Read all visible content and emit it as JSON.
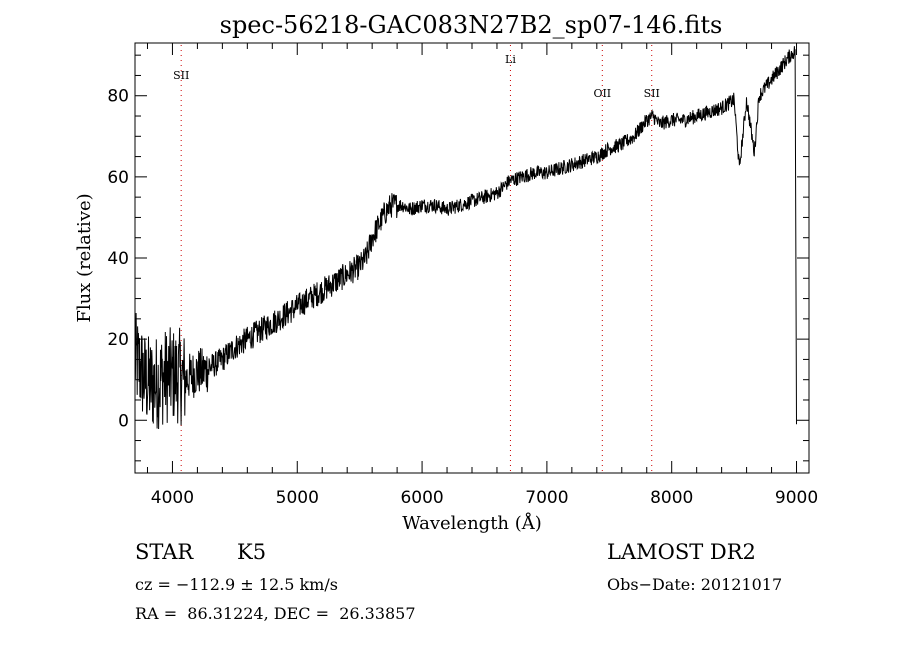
{
  "chart_data": {
    "type": "line",
    "title": "spec-56218-GAC083N27B2_sp07-146.fits",
    "xlabel": "Wavelength (Å)",
    "ylabel": "Flux (relative)",
    "xlim": [
      3700,
      9100
    ],
    "ylim": [
      -13,
      93
    ],
    "xticks": [
      4000,
      5000,
      6000,
      7000,
      8000,
      9000
    ],
    "yticks": [
      0,
      20,
      40,
      60,
      80
    ],
    "grid": false,
    "legend": "none",
    "line_color": "#000000",
    "marker_color": "#cc0000",
    "series": [
      {
        "x": [
          3700,
          3740,
          3780,
          3820,
          3860,
          3900,
          3950,
          4000,
          4050,
          4100,
          4150,
          4200,
          4250,
          4300,
          4400,
          4500,
          4600,
          4700,
          4800,
          4900,
          5000,
          5100,
          5200,
          5300,
          5400,
          5500,
          5550,
          5600,
          5650,
          5700,
          5750,
          5800,
          5850,
          5900,
          6000,
          6100,
          6200,
          6300,
          6400,
          6500,
          6600,
          6700,
          6800,
          6900,
          7000,
          7100,
          7200,
          7300,
          7400,
          7500,
          7600,
          7700,
          7750,
          7800,
          7850,
          7900,
          8000,
          8100,
          8200,
          8300,
          8400,
          8450,
          8500,
          8542,
          8600,
          8662,
          8700,
          8800,
          8900,
          8950,
          8990,
          9000
        ],
        "y": [
          15,
          13,
          10,
          9,
          9,
          10,
          11,
          11,
          11,
          10,
          11,
          12,
          12,
          13,
          15,
          18,
          20,
          22,
          24,
          26,
          28,
          30,
          32,
          34,
          36,
          38,
          40,
          45,
          48,
          51,
          53,
          53,
          53,
          52,
          53,
          53,
          52,
          53,
          54,
          55,
          56,
          59,
          60,
          61,
          61,
          62,
          63,
          64,
          65,
          67,
          68,
          70,
          72,
          74,
          75,
          73,
          74,
          74,
          75,
          76,
          77,
          78,
          79,
          62,
          79,
          66,
          80,
          84,
          88,
          90,
          91,
          -1
        ]
      }
    ],
    "line_markers": [
      {
        "label": "SII",
        "x": 4070
      },
      {
        "label": "Li",
        "x": 6708
      },
      {
        "label": "OII",
        "x": 7444
      },
      {
        "label": "SII",
        "x": 7840
      }
    ]
  },
  "info": {
    "object_type": "STAR",
    "subclass": "K5",
    "survey": "LAMOST DR2",
    "cz": "cz = −112.9 ± 12.5 km/s",
    "obs_date": "Obs−Date: 20121017",
    "coords": "RA =  86.31224, DEC =  26.33857"
  }
}
